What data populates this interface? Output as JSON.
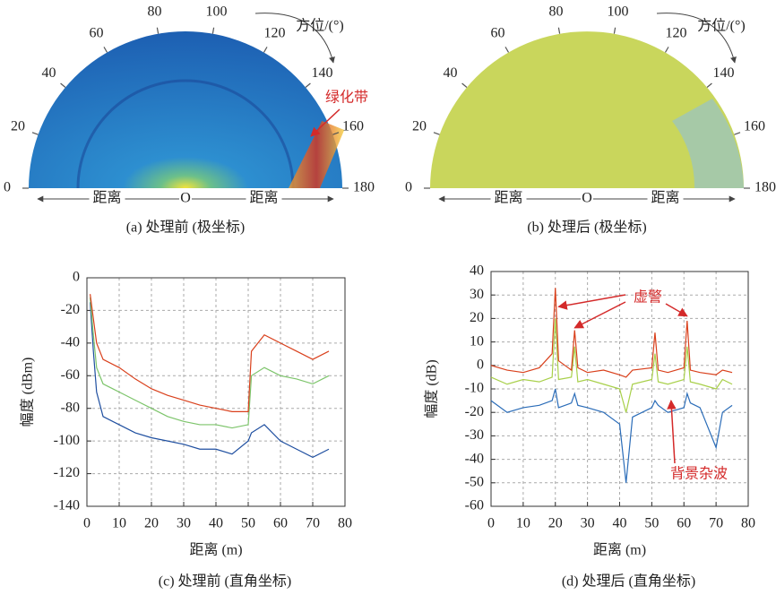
{
  "chart_data": [
    {
      "type": "polar",
      "caption": "(a) 处理前 (极坐标)",
      "axis_label": "方位/(°)",
      "range_label": "距离",
      "origin_label": "O",
      "annotations": [
        "绿化带"
      ],
      "angle_ticks": [
        0,
        20,
        40,
        60,
        80,
        100,
        120,
        140,
        160,
        180
      ]
    },
    {
      "type": "polar",
      "caption": "(b) 处理后 (极坐标)",
      "axis_label": "方位/(°)",
      "range_label": "距离",
      "origin_label": "O",
      "annotations": [],
      "angle_ticks": [
        0,
        20,
        40,
        60,
        80,
        100,
        120,
        140,
        160,
        180
      ]
    },
    {
      "type": "line",
      "caption": "(c) 处理前 (直角坐标)",
      "xlabel": "距离 (m)",
      "ylabel": "幅度 (dBm)",
      "xlim": [
        0,
        80
      ],
      "xticks": [
        0,
        10,
        20,
        30,
        40,
        50,
        60,
        70,
        80
      ],
      "ylim": [
        -140,
        0
      ],
      "yticks": [
        -140,
        -120,
        -100,
        -80,
        -60,
        -40,
        -20,
        0
      ],
      "grid": true,
      "annotations": [],
      "x": [
        1,
        2,
        3,
        5,
        10,
        15,
        20,
        25,
        30,
        35,
        40,
        45,
        50,
        51,
        55,
        60,
        65,
        70,
        75
      ],
      "series": [
        {
          "color": "#1f4fa0",
          "values": [
            -15,
            -45,
            -70,
            -85,
            -90,
            -95,
            -98,
            -100,
            -102,
            -105,
            -105,
            -108,
            -100,
            -95,
            -90,
            -100,
            -105,
            -110,
            -105
          ]
        },
        {
          "color": "#7cc46a",
          "values": [
            -12,
            -35,
            -55,
            -65,
            -70,
            -75,
            -80,
            -85,
            -88,
            -90,
            -90,
            -92,
            -90,
            -60,
            -55,
            -60,
            -62,
            -65,
            -60
          ]
        },
        {
          "color": "#d9401c",
          "values": [
            -10,
            -25,
            -40,
            -50,
            -55,
            -62,
            -68,
            -72,
            -75,
            -78,
            -80,
            -82,
            -82,
            -45,
            -35,
            -40,
            -45,
            -50,
            -45
          ]
        }
      ]
    },
    {
      "type": "line",
      "caption": "(d) 处理后 (直角坐标)",
      "xlabel": "距离 (m)",
      "ylabel": "幅度 (dB)",
      "xlim": [
        0,
        80
      ],
      "xticks": [
        0,
        10,
        20,
        30,
        40,
        50,
        60,
        70,
        80
      ],
      "ylim": [
        -60,
        40
      ],
      "yticks": [
        -60,
        -50,
        -40,
        -30,
        -20,
        -10,
        0,
        10,
        20,
        30,
        40
      ],
      "grid": true,
      "annotations": [
        "虚警",
        "背景杂波"
      ],
      "x": [
        0,
        5,
        10,
        15,
        19,
        20,
        21,
        25,
        26,
        27,
        30,
        35,
        40,
        42,
        44,
        50,
        51,
        52,
        55,
        60,
        61,
        62,
        65,
        70,
        72,
        75
      ],
      "series": [
        {
          "color": "#2a6cb8",
          "values": [
            -15,
            -20,
            -18,
            -17,
            -15,
            -10,
            -18,
            -16,
            -12,
            -17,
            -18,
            -20,
            -25,
            -50,
            -22,
            -18,
            -15,
            -17,
            -20,
            -18,
            -12,
            -16,
            -18,
            -35,
            -20,
            -17
          ]
        },
        {
          "color": "#a8d04a",
          "values": [
            -5,
            -8,
            -6,
            -7,
            -5,
            20,
            -6,
            -5,
            8,
            -7,
            -6,
            -8,
            -10,
            -20,
            -8,
            -6,
            5,
            -7,
            -8,
            -6,
            8,
            -7,
            -8,
            -10,
            -6,
            -8
          ]
        },
        {
          "color": "#d9401c",
          "values": [
            0,
            -2,
            -3,
            -1,
            5,
            33,
            2,
            -2,
            15,
            -1,
            -3,
            -2,
            -4,
            -5,
            -2,
            -1,
            14,
            -2,
            -3,
            -1,
            19,
            -2,
            -3,
            -4,
            -2,
            -3
          ]
        }
      ]
    }
  ]
}
